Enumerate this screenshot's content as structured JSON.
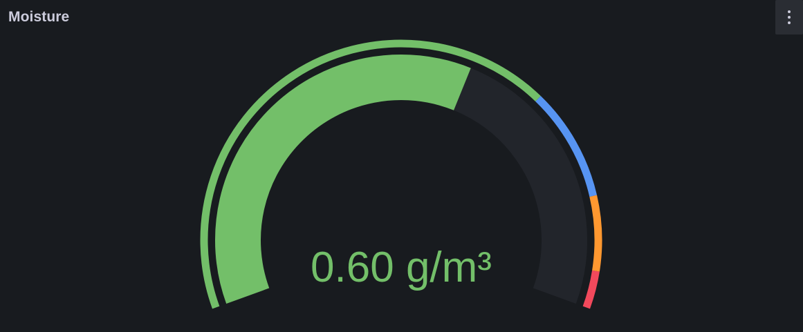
{
  "panel": {
    "title": "Moisture",
    "menu_icon": "kebab-vertical-icon"
  },
  "gauge": {
    "display_text": "0.60 g/m³",
    "value": 0.6,
    "min": 0,
    "max": 1,
    "value_color": "#73bf69",
    "track_color": "#22252b",
    "thresholds": [
      {
        "from": 0,
        "to": 0.7,
        "color": "#73bf69"
      },
      {
        "from": 0.7,
        "to": 0.85,
        "color": "#5794f2"
      },
      {
        "from": 0.85,
        "to": 0.95,
        "color": "#ff9830"
      },
      {
        "from": 0.95,
        "to": 1,
        "color": "#f2495c"
      }
    ]
  }
}
